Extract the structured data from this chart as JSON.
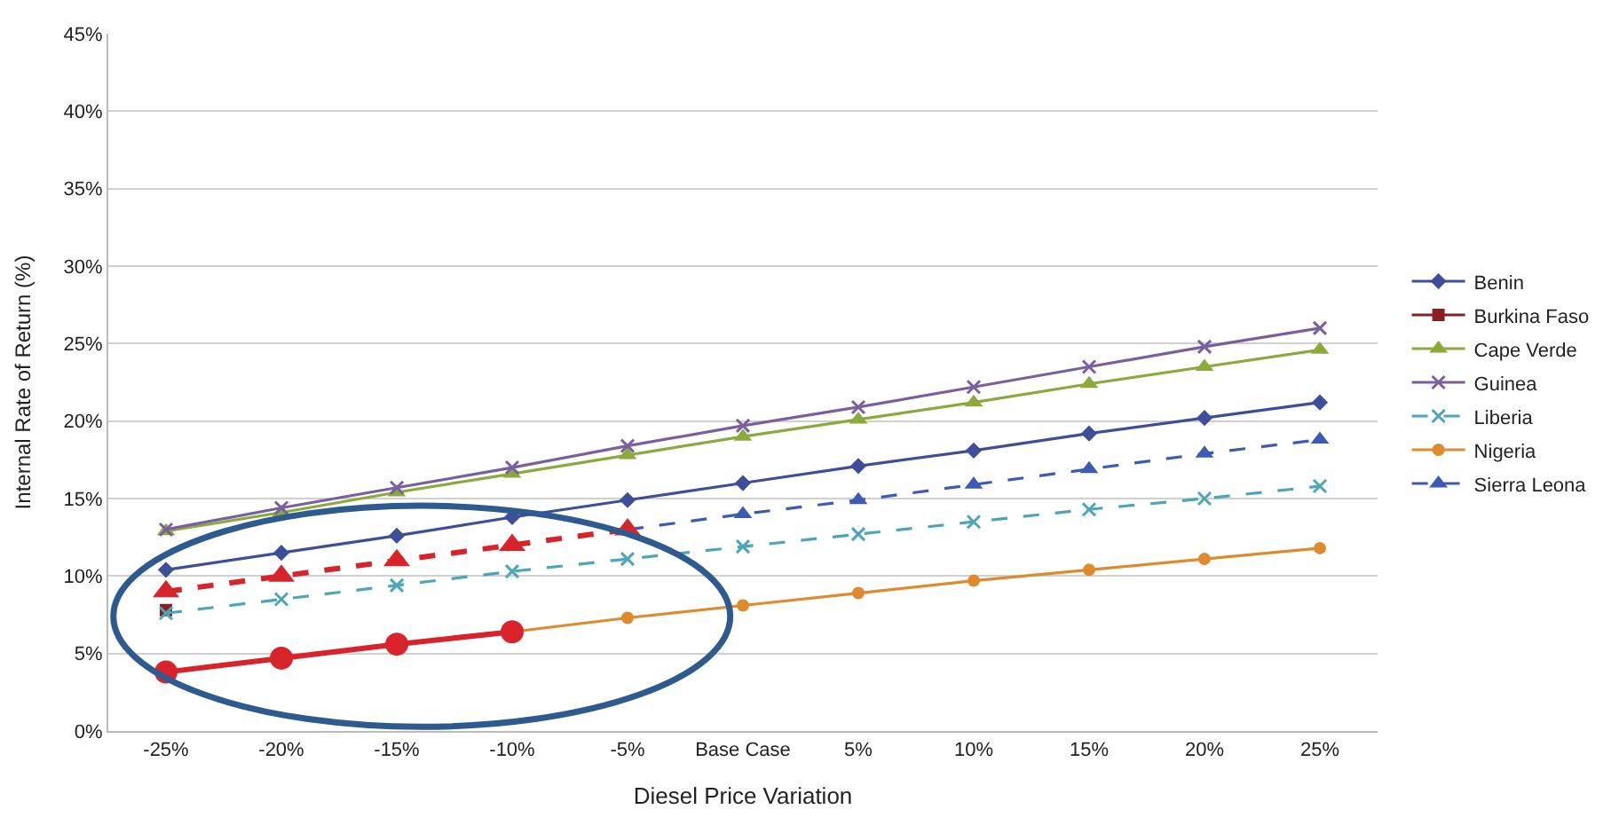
{
  "chart_data": {
    "type": "line",
    "xlabel": "Diesel Price Variation",
    "ylabel": "Internal Rate of Return (%)",
    "categories": [
      "-25%",
      "-20%",
      "-15%",
      "-10%",
      "-5%",
      "Base Case",
      "5%",
      "10%",
      "15%",
      "20%",
      "25%"
    ],
    "series": [
      {
        "name": "Benin",
        "color": "#3d4f9a",
        "marker": "diamond",
        "line_style": "solid",
        "values": [
          10.4,
          11.5,
          12.6,
          13.8,
          14.9,
          16.0,
          17.1,
          18.1,
          19.2,
          20.2,
          21.2
        ]
      },
      {
        "name": "Burkina Faso",
        "color": "#8b1e24",
        "marker": "square",
        "line_style": "solid",
        "values": [
          7.8,
          null,
          null,
          null,
          null,
          null,
          null,
          null,
          null,
          null,
          null
        ]
      },
      {
        "name": "Cape Verde",
        "color": "#8aaa3c",
        "marker": "triangle",
        "line_style": "solid",
        "values": [
          12.9,
          14.1,
          15.4,
          16.6,
          17.8,
          19.0,
          20.1,
          21.2,
          22.4,
          23.5,
          24.6
        ]
      },
      {
        "name": "Guinea",
        "color": "#7a5fa0",
        "marker": "cross",
        "line_style": "solid",
        "values": [
          13.0,
          14.4,
          15.7,
          17.0,
          18.4,
          19.7,
          20.9,
          22.2,
          23.5,
          24.8,
          26.0
        ]
      },
      {
        "name": "Liberia",
        "color": "#4aa6b8",
        "marker": "cross",
        "line_style": "dashed",
        "values": [
          7.6,
          8.5,
          9.4,
          10.3,
          11.1,
          11.9,
          12.7,
          13.5,
          14.3,
          15.0,
          15.8
        ]
      },
      {
        "name": "Nigeria",
        "color": "#e08a2e",
        "marker": "circle",
        "line_style": "solid",
        "values": [
          null,
          null,
          null,
          6.4,
          7.3,
          8.1,
          8.9,
          9.7,
          10.4,
          11.1,
          11.8
        ]
      },
      {
        "name": "Sierra Leona",
        "color": "#3b5bb5",
        "marker": "triangle",
        "line_style": "dashed",
        "values": [
          null,
          null,
          null,
          null,
          13.0,
          14.0,
          14.9,
          15.9,
          16.9,
          17.9,
          18.8
        ]
      },
      {
        "color": "#d9232a",
        "marker": "circle",
        "line_style": "solid",
        "values": [
          3.8,
          4.7,
          5.6,
          6.4,
          null,
          null,
          null,
          null,
          null,
          null,
          null
        ]
      },
      {
        "color": "#d9232a",
        "marker": "triangle",
        "line_style": "dashed",
        "values": [
          9.0,
          10.0,
          11.0,
          12.0,
          13.0,
          null,
          null,
          null,
          null,
          null,
          null
        ]
      }
    ],
    "ylim": [
      0,
      45
    ],
    "yticks": [
      {
        "value": 0,
        "label": "0%"
      },
      {
        "value": 5,
        "label": "5%"
      },
      {
        "value": 10,
        "label": "10%"
      },
      {
        "value": 15,
        "label": "15%"
      },
      {
        "value": 20,
        "label": "20%"
      },
      {
        "value": 25,
        "label": "25%"
      },
      {
        "value": 30,
        "label": "30%"
      },
      {
        "value": 35,
        "label": "35%"
      },
      {
        "value": 40,
        "label": "40%"
      },
      {
        "value": 45,
        "label": "45%"
      }
    ],
    "grid": "y",
    "legend": "right"
  }
}
